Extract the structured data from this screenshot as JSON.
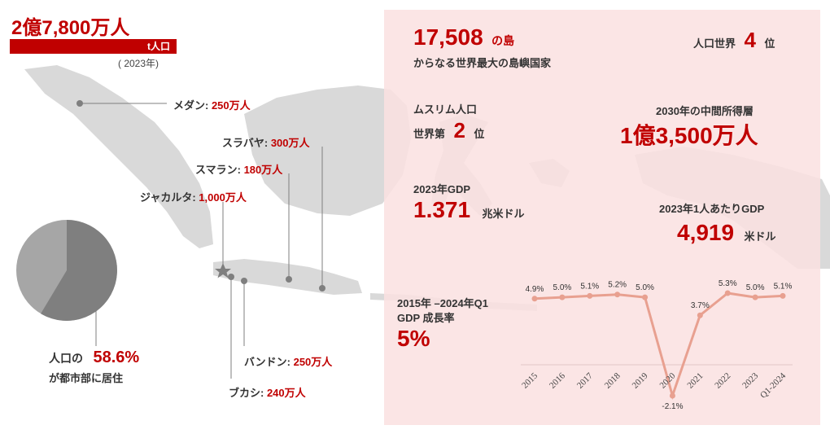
{
  "population": {
    "value": "2億7,800万人",
    "label": "t人口",
    "year": "( 2023年)"
  },
  "cities": [
    {
      "name": "メダン: ",
      "value": "250万人"
    },
    {
      "name": "スラバヤ: ",
      "value": "300万人"
    },
    {
      "name": "スマラン: ",
      "value": "180万人"
    },
    {
      "name": "ジャカルタ: ",
      "value": "1,000万人"
    },
    {
      "name": "バンドン: ",
      "value": "250万人"
    },
    {
      "name": "ブカシ: ",
      "value": "240万人"
    }
  ],
  "urban": {
    "prefix": "人口の",
    "value": "58.6%",
    "suffix": "が都市部に居住",
    "urban_fraction": 0.586
  },
  "stats": {
    "islands_value": "17,508",
    "islands_unit": "の島",
    "islands_caption": "からなる世界最大の島嶼国家",
    "pop_rank_label": "人口世界",
    "pop_rank_value": "4",
    "pop_rank_unit": "位",
    "muslim_label": "ムスリム人口",
    "muslim_prefix": "世界第",
    "muslim_value": "2",
    "muslim_unit": "位",
    "middle_label": "2030年の中間所得層",
    "middle_value": "1億3,500万人",
    "gdp_label": "2023年GDP",
    "gdp_value": "1.371",
    "gdp_unit": "兆米ドル",
    "gdppc_label": "2023年1人あたりGDP",
    "gdppc_value": "4,919",
    "gdppc_unit": "米ドル",
    "growth_label1": "2015年 –2024年Q1",
    "growth_label2": "GDP 成長率",
    "growth_value": "5%"
  },
  "colors": {
    "accent": "#c00000",
    "line": "#e8a090",
    "map": "#d9d9d9",
    "pie_urban": "#7f7f7f",
    "pie_rural": "#a6a6a6"
  },
  "chart_data": {
    "type": "line",
    "categories": [
      "2015",
      "2016",
      "2017",
      "2018",
      "2019",
      "2020",
      "2021",
      "2022",
      "2023",
      "Q1-2024"
    ],
    "values": [
      4.9,
      5.0,
      5.1,
      5.2,
      5.0,
      -2.1,
      3.7,
      5.3,
      5.0,
      5.1
    ],
    "labels": [
      "4.9%",
      "5.0%",
      "5.1%",
      "5.2%",
      "5.0%",
      "-2.1%",
      "3.7%",
      "5.3%",
      "5.0%",
      "5.1%"
    ],
    "ylim": [
      -2.1,
      5.3
    ],
    "grid": false,
    "title": "",
    "xlabel": "",
    "ylabel": ""
  }
}
